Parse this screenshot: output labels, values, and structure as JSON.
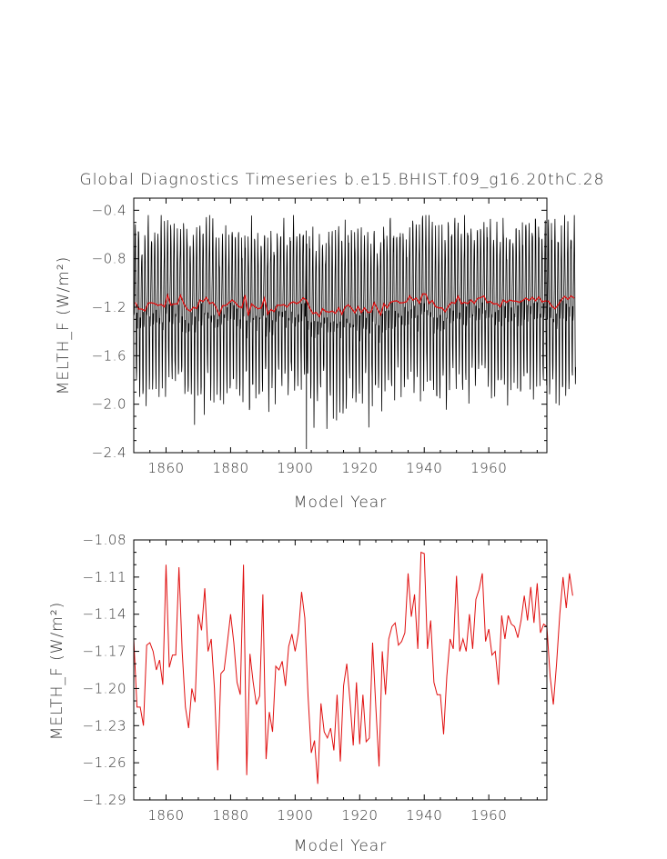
{
  "title": "Global Diagnostics Timeseries b.e15.BHIST.f09_g16.20thC.28",
  "colors": {
    "monthly": "#000000",
    "annual": "#e01010",
    "frame": "#000000"
  },
  "chart_data": [
    {
      "type": "line",
      "xlabel": "Model Year",
      "ylabel": "MELTH_F (W/m²)",
      "xlim": [
        1850,
        1978
      ],
      "ylim": [
        -2.4,
        -0.3
      ],
      "xticks": [
        1860,
        1880,
        1900,
        1920,
        1940,
        1960
      ],
      "xtick_labels": [
        "1860",
        "1880",
        "1900",
        "1920",
        "1940",
        "1960"
      ],
      "yticks": [
        -2.4,
        -2.0,
        -1.6,
        -1.2,
        -0.8,
        -0.4
      ],
      "ytick_labels": [
        "−2.4",
        "−2.0",
        "−1.6",
        "−1.2",
        "−0.8",
        "−0.4"
      ],
      "series": [
        {
          "role": "monthly",
          "seasonal_cycle": [
            -1.18,
            -1.27,
            -1.22,
            -1.06,
            -0.84,
            -0.6,
            -0.53,
            -0.68,
            -1.06,
            -1.5,
            -1.78,
            -1.7
          ],
          "extremes": {
            "max": -0.44,
            "min": -2.37,
            "min_x": 1903.5
          }
        },
        {
          "role": "annual mean",
          "x_start": 1850,
          "values": [
            -1.16,
            -1.215,
            -1.215,
            -1.23,
            -1.165,
            -1.163,
            -1.17,
            -1.185,
            -1.177,
            -1.197,
            -1.1,
            -1.183,
            -1.173,
            -1.173,
            -1.102,
            -1.17,
            -1.215,
            -1.232,
            -1.2,
            -1.211,
            -1.14,
            -1.153,
            -1.119,
            -1.17,
            -1.16,
            -1.2,
            -1.266,
            -1.188,
            -1.185,
            -1.163,
            -1.14,
            -1.163,
            -1.195,
            -1.205,
            -1.1,
            -1.27,
            -1.172,
            -1.195,
            -1.213,
            -1.206,
            -1.124,
            -1.257,
            -1.219,
            -1.235,
            -1.182,
            -1.185,
            -1.178,
            -1.198,
            -1.166,
            -1.156,
            -1.17,
            -1.155,
            -1.122,
            -1.143,
            -1.206,
            -1.252,
            -1.242,
            -1.277,
            -1.212,
            -1.235,
            -1.24,
            -1.232,
            -1.25,
            -1.205,
            -1.259,
            -1.198,
            -1.18,
            -1.21,
            -1.246,
            -1.195,
            -1.245,
            -1.205,
            -1.243,
            -1.24,
            -1.163,
            -1.215,
            -1.263,
            -1.17,
            -1.205,
            -1.16,
            -1.15,
            -1.147,
            -1.165,
            -1.162,
            -1.155,
            -1.107,
            -1.142,
            -1.124,
            -1.168,
            -1.09,
            -1.091,
            -1.168,
            -1.145,
            -1.195,
            -1.205,
            -1.205,
            -1.237,
            -1.19,
            -1.16,
            -1.168,
            -1.109,
            -1.17,
            -1.16,
            -1.17,
            -1.14,
            -1.168,
            -1.128,
            -1.12,
            -1.107,
            -1.162,
            -1.152,
            -1.173,
            -1.17,
            -1.197,
            -1.141,
            -1.16,
            -1.141,
            -1.148,
            -1.15,
            -1.159,
            -1.145,
            -1.125,
            -1.145,
            -1.118,
            -1.147,
            -1.115,
            -1.155,
            -1.148,
            -1.15,
            -1.19,
            -1.213,
            -1.18,
            -1.14,
            -1.11,
            -1.135,
            -1.107,
            -1.125
          ]
        }
      ]
    },
    {
      "type": "line",
      "xlabel": "Model Year",
      "ylabel": "MELTH_F (W/m²)",
      "xlim": [
        1850,
        1978
      ],
      "ylim": [
        -1.29,
        -1.08
      ],
      "xticks": [
        1860,
        1880,
        1900,
        1920,
        1940,
        1960
      ],
      "xtick_labels": [
        "1860",
        "1880",
        "1900",
        "1920",
        "1940",
        "1960"
      ],
      "yticks": [
        -1.29,
        -1.26,
        -1.23,
        -1.2,
        -1.17,
        -1.14,
        -1.11,
        -1.08
      ],
      "ytick_labels": [
        "−1.29",
        "−1.26",
        "−1.23",
        "−1.20",
        "−1.17",
        "−1.14",
        "−1.11",
        "−1.08"
      ],
      "series": [
        {
          "role": "annual mean",
          "same_as": "chart_data.0.series.1"
        }
      ]
    }
  ]
}
